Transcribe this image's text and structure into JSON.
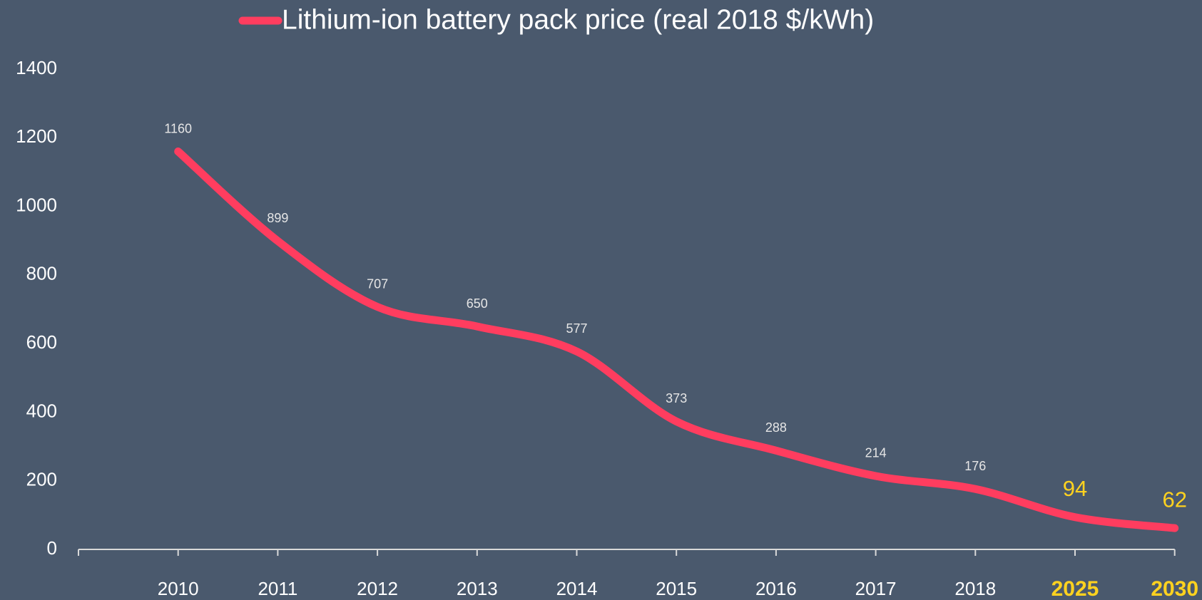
{
  "chart_data": {
    "type": "line",
    "categories": [
      "2010",
      "2011",
      "2012",
      "2013",
      "2014",
      "2015",
      "2016",
      "2017",
      "2018",
      "2025",
      "2030"
    ],
    "series": [
      {
        "name": "Lithium-ion battery pack price (real 2018 $/kWh)",
        "color": "#ff3d5f",
        "values": [
          1160,
          899,
          707,
          650,
          577,
          373,
          288,
          214,
          176,
          94,
          62
        ]
      }
    ],
    "label_colors": [
      "#e6e6e6",
      "#e6e6e6",
      "#e6e6e6",
      "#e6e6e6",
      "#e6e6e6",
      "#e6e6e6",
      "#e6e6e6",
      "#e6e6e6",
      "#e6e6e6",
      "#ffd21f",
      "#ffd21f"
    ],
    "ylim": [
      0,
      1400
    ],
    "yticks": [
      0,
      200,
      400,
      600,
      800,
      1000,
      1200,
      1400
    ],
    "grid": false,
    "legend": "top"
  }
}
